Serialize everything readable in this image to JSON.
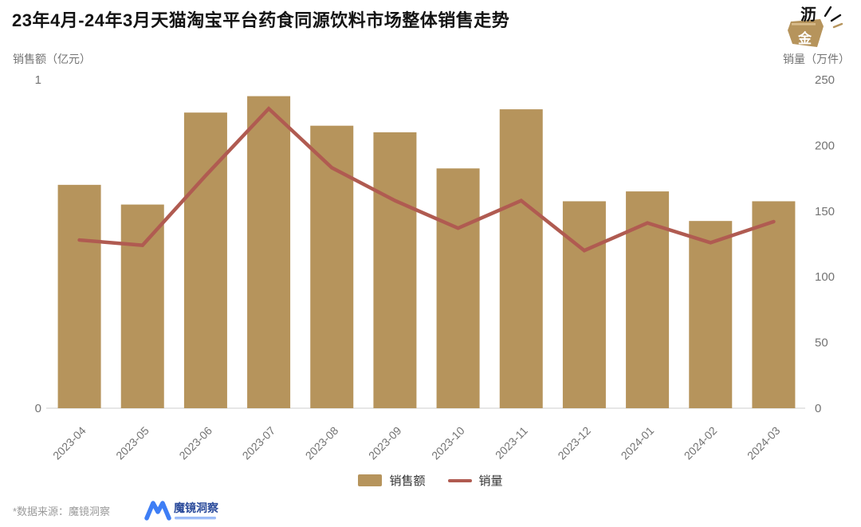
{
  "page": {
    "title": "23年4月-24年3月天猫淘宝平台药食同源饮料市场整体销售走势"
  },
  "brand": {
    "char_top": "沥",
    "char_bottom": "金"
  },
  "footer": {
    "source_note": "*数据来源：魔镜洞察",
    "moojing_logo_text": "魔镜洞察"
  },
  "colors": {
    "bar": "#B6945C",
    "line": "#B05B51",
    "axis_text": "#737373",
    "axis_line": "#DDDDDD",
    "title_text": "#141414",
    "footer_text": "#9B9B9B",
    "moojing_blue": "#3E7EF5",
    "moojing_navy": "#2B4B9B",
    "moojing_light_blue": "#9DBDF9",
    "logo_gold": "#B6945C"
  },
  "chart_data": {
    "type": "bar+line combo",
    "categories": [
      "2023-04",
      "2023-05",
      "2023-06",
      "2023-07",
      "2023-08",
      "2023-09",
      "2023-10",
      "2023-11",
      "2023-12",
      "2024-01",
      "2024-02",
      "2024-03"
    ],
    "series": [
      {
        "name": "销售额",
        "type": "bar",
        "axis": "left",
        "unit": "亿元",
        "values": [
          0.68,
          0.62,
          0.9,
          0.95,
          0.86,
          0.84,
          0.73,
          0.91,
          0.63,
          0.66,
          0.57,
          0.63
        ]
      },
      {
        "name": "销量",
        "type": "line",
        "axis": "right",
        "unit": "万件",
        "values": [
          128,
          124,
          177,
          228,
          183,
          158,
          137,
          158,
          120,
          141,
          126,
          142
        ]
      }
    ],
    "left_axis": {
      "title": "销售额（亿元）",
      "min": 0,
      "max": 1,
      "ticks": [
        0,
        1
      ]
    },
    "right_axis": {
      "title": "销量（万件）",
      "min": 0,
      "max": 250,
      "ticks": [
        0,
        50,
        100,
        150,
        200,
        250
      ]
    },
    "legend": [
      "销售额",
      "销量"
    ],
    "legend_position": "bottom",
    "grid": false,
    "x_label_rotation": 45
  }
}
